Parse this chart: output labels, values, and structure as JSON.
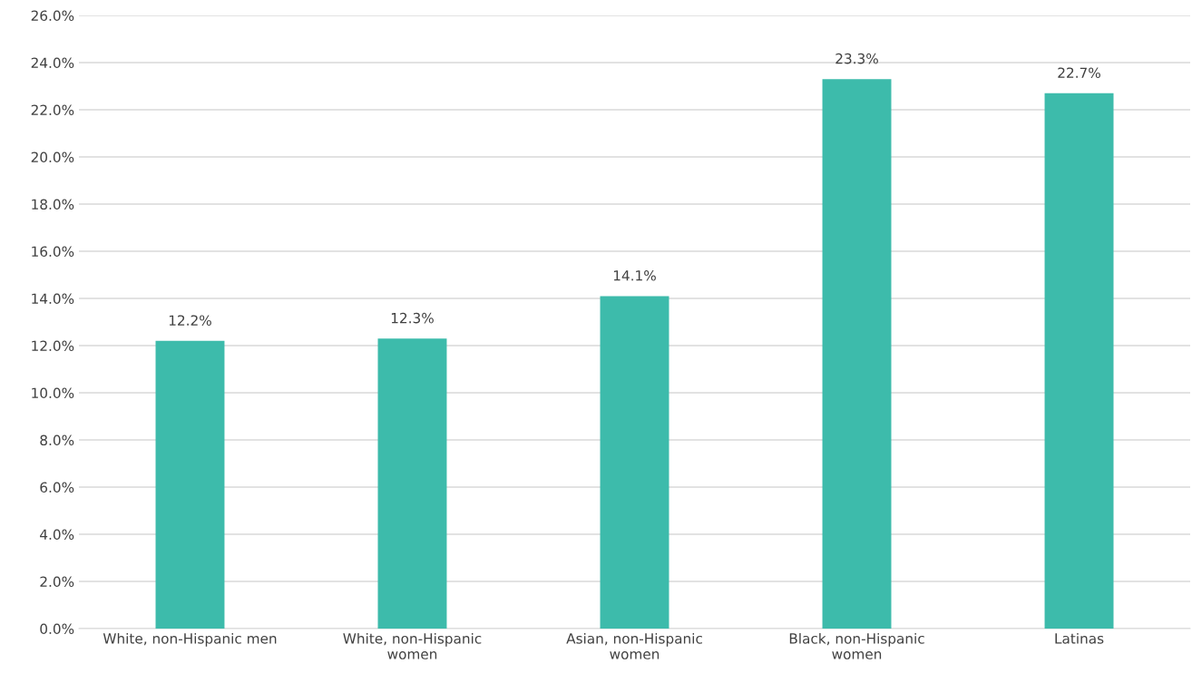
{
  "chart_data": {
    "type": "bar",
    "categories": [
      "White, non-Hispanic men",
      "White, non-Hispanic\nwomen",
      "Asian, non-Hispanic\nwomen",
      "Black, non-Hispanic\nwomen",
      "Latinas"
    ],
    "values": [
      12.2,
      12.3,
      14.1,
      23.3,
      22.7
    ],
    "value_labels": [
      "12.2%",
      "12.3%",
      "14.1%",
      "23.3%",
      "22.7%"
    ],
    "color": "#3dbbab",
    "ylim": [
      0,
      26
    ],
    "yticks": [
      {
        "value": 0,
        "label": "0.0%"
      },
      {
        "value": 2,
        "label": "2.0%"
      },
      {
        "value": 4,
        "label": "4.0%"
      },
      {
        "value": 6,
        "label": "6.0%"
      },
      {
        "value": 8,
        "label": "8.0%"
      },
      {
        "value": 10,
        "label": "10.0%"
      },
      {
        "value": 12,
        "label": "12.0%"
      },
      {
        "value": 14,
        "label": "14.0%"
      },
      {
        "value": 16,
        "label": "16.0%"
      },
      {
        "value": 18,
        "label": "18.0%"
      },
      {
        "value": 20,
        "label": "20.0%"
      },
      {
        "value": 22,
        "label": "22.0%"
      },
      {
        "value": 24,
        "label": "24.0%"
      },
      {
        "value": 26,
        "label": "26.0%"
      }
    ],
    "grid": "y"
  }
}
